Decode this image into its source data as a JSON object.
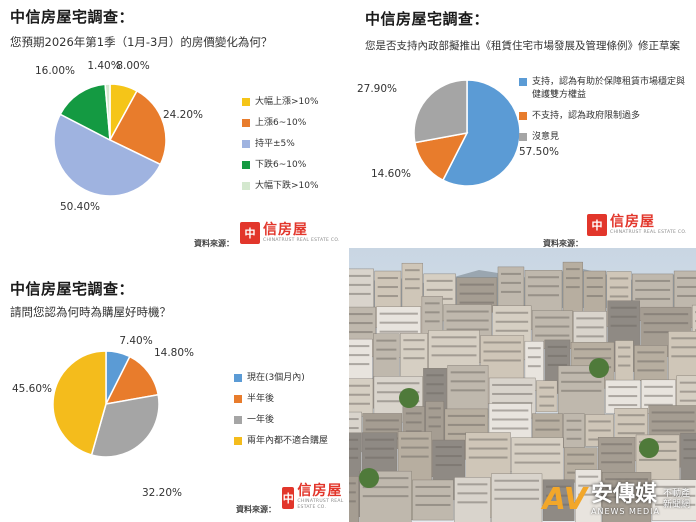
{
  "colors": {
    "yellow": "#f5c518",
    "orange": "#e87c2c",
    "lightblue": "#9fb3e0",
    "green": "#149a42",
    "pale": "#d4e8cf",
    "blue": "#5b9bd5",
    "gray": "#a5a5a5",
    "gold": "#f4bc1c"
  },
  "panels": [
    {
      "title": "中信房屋宅調查：",
      "question": "您預期2026年第1季（1月-3月）的房價變化為何？",
      "source": "資料來源：",
      "logo": {
        "mark": "中",
        "name": "信房屋",
        "sub": "CHINATRUST REAL ESTATE CO."
      }
    },
    {
      "title": "中信房屋宅調查：",
      "question": "您是否支持內政部擬推出《租賃住宅市場發展及管理條例》修正草案",
      "source": "資料來源：",
      "logo": {
        "mark": "中",
        "name": "信房屋",
        "sub": "CHINATRUST REAL ESTATE CO."
      }
    },
    {
      "title": "中信房屋宅調查：",
      "question": "請問您認為何時為購屋好時機？",
      "source": "資料來源：",
      "logo": {
        "mark": "中",
        "name": "信房屋",
        "sub": "CHINATRUST REAL ESTATE CO."
      }
    }
  ],
  "chart_data": [
    {
      "type": "pie",
      "categories": [
        "大幅上漲>10%",
        "上漲6~10%",
        "持平±5%",
        "下跌6~10%",
        "大幅下跌>10%"
      ],
      "values": [
        8.0,
        24.2,
        50.4,
        16.0,
        1.4
      ],
      "labels": [
        "8.00%",
        "24.20%",
        "50.40%",
        "16.00%",
        "1.40%"
      ],
      "colors": [
        "#f5c518",
        "#e87c2c",
        "#9fb3e0",
        "#149a42",
        "#d4e8cf"
      ],
      "legend_position": "right"
    },
    {
      "type": "pie",
      "categories": [
        "支持，認為有助於保障租賃市場穩定與健護雙方權益",
        "不支持，認為政府限制過多",
        "沒意見"
      ],
      "values": [
        57.5,
        14.6,
        27.9
      ],
      "labels": [
        "57.50%",
        "14.60%",
        "27.90%"
      ],
      "colors": [
        "#5b9bd5",
        "#e87c2c",
        "#a5a5a5"
      ],
      "legend_position": "right"
    },
    {
      "type": "pie",
      "categories": [
        "現在(3個月內)",
        "半年後",
        "一年後",
        "兩年內都不適合購屋"
      ],
      "values": [
        7.4,
        14.8,
        32.2,
        45.6
      ],
      "labels": [
        "7.40%",
        "14.80%",
        "32.20%",
        "45.60%"
      ],
      "colors": [
        "#5b9bd5",
        "#e87c2c",
        "#a5a5a5",
        "#f4bc1c"
      ],
      "legend_position": "right"
    }
  ],
  "brand": {
    "icon": "AV",
    "name": "安傳媒",
    "sub": "ANEWS MEDIA",
    "side_line1": "不動產",
    "side_line2": "新聞網"
  }
}
